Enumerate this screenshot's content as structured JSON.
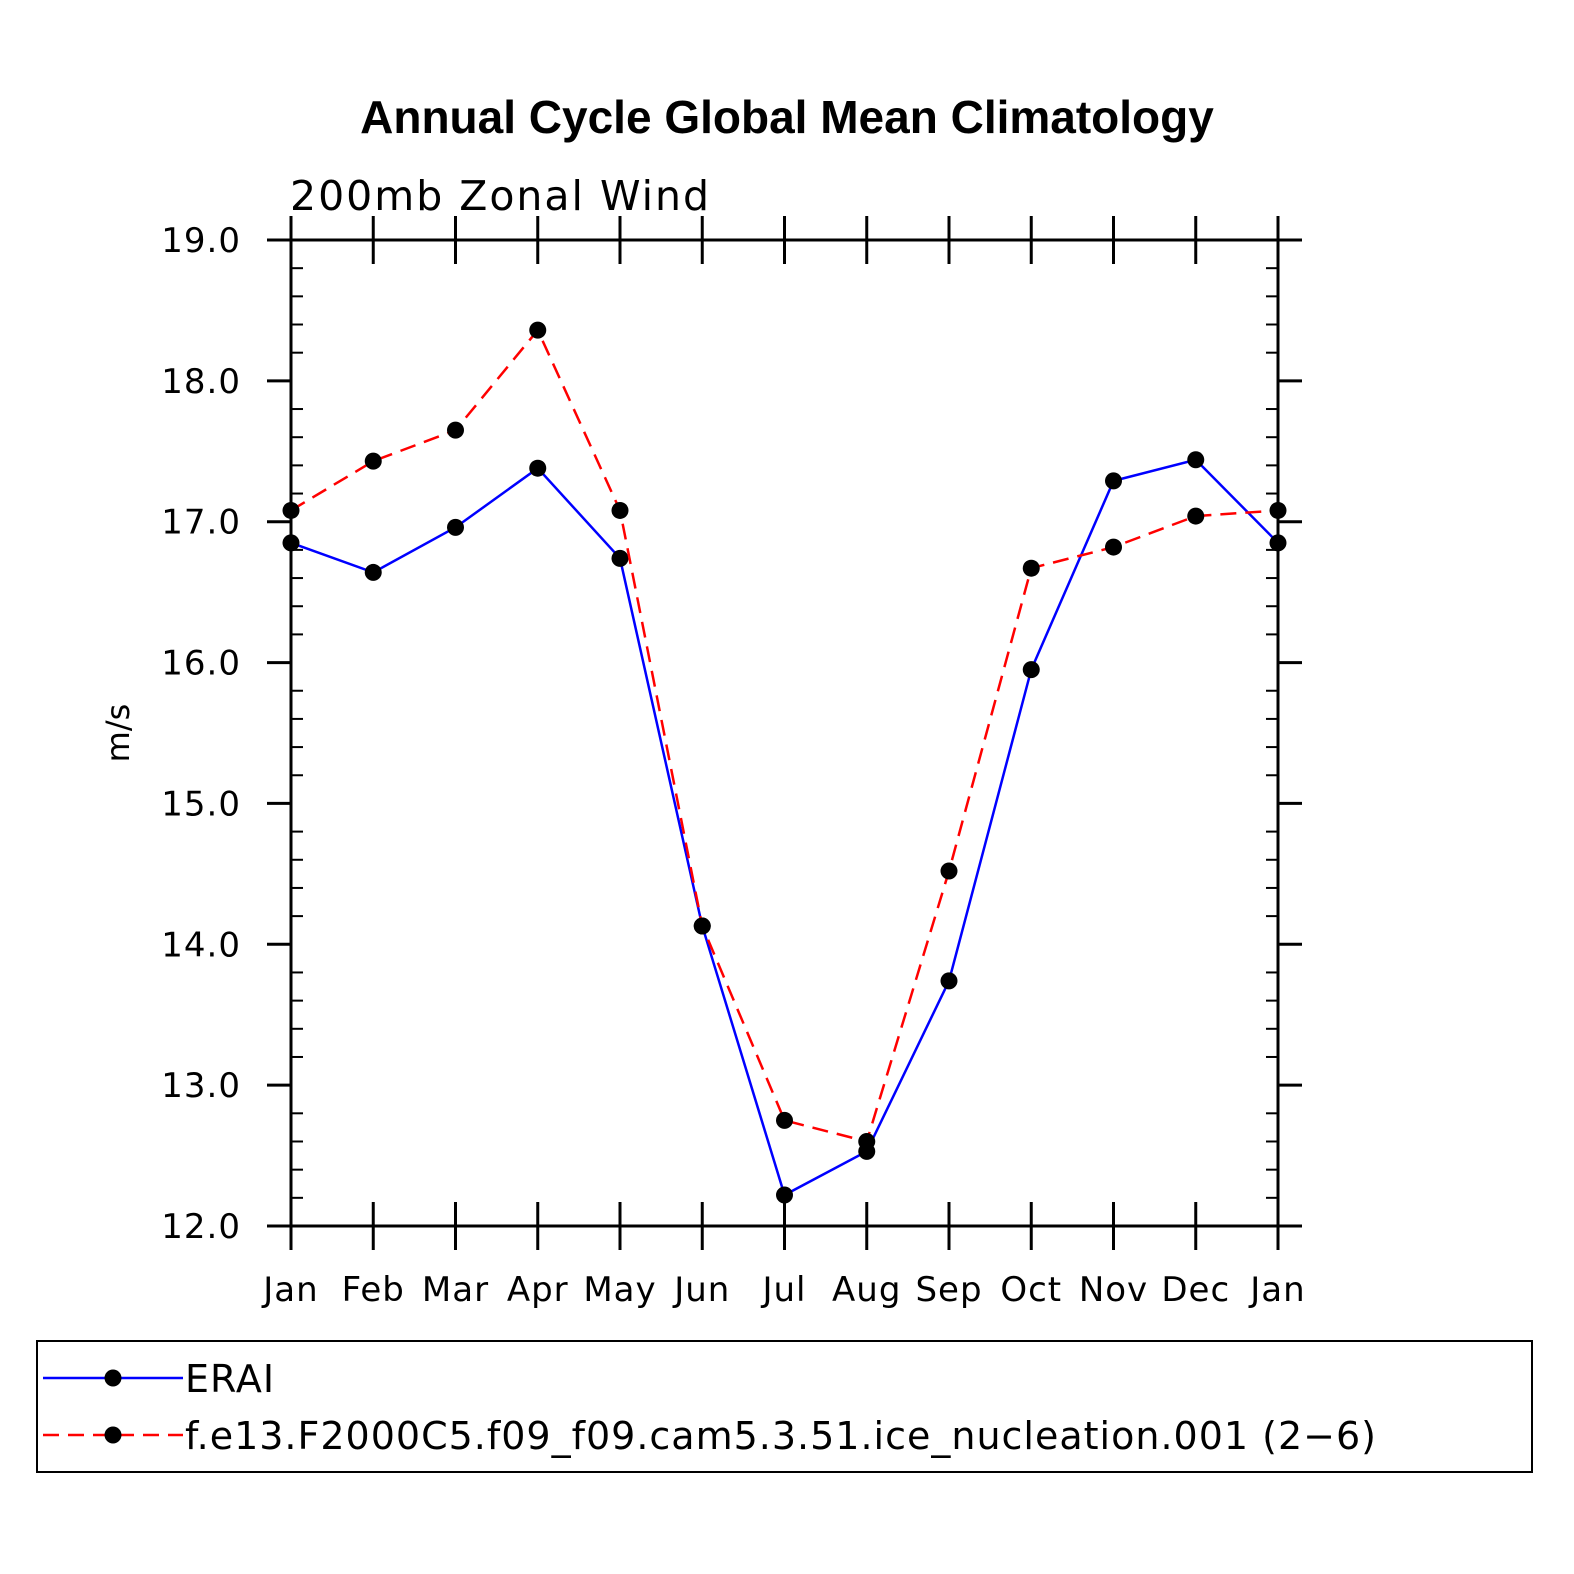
{
  "chart_data": {
    "type": "line",
    "title": "Annual Cycle Global Mean Climatology",
    "subtitle": "200mb Zonal Wind",
    "ylabel": "m/s",
    "xlabel": "",
    "ylim": [
      12.0,
      19.0
    ],
    "y_ticks": [
      "12.0",
      "13.0",
      "14.0",
      "15.0",
      "16.0",
      "17.0",
      "18.0",
      "19.0"
    ],
    "categories": [
      "Jan",
      "Feb",
      "Mar",
      "Apr",
      "May",
      "Jun",
      "Jul",
      "Aug",
      "Sep",
      "Oct",
      "Nov",
      "Dec",
      "Jan"
    ],
    "series": [
      {
        "name": "ERAI",
        "color": "#0000ff",
        "dash": "solid",
        "values": [
          16.85,
          16.64,
          16.96,
          17.38,
          16.74,
          14.13,
          12.22,
          12.53,
          13.74,
          15.95,
          17.29,
          17.44,
          16.85
        ]
      },
      {
        "name": "f.e13.F2000C5.f09_f09.cam5.3.51.ice_nucleation.001 (2−6)",
        "color": "#ff0000",
        "dash": "dashed",
        "values": [
          17.08,
          17.43,
          17.65,
          18.36,
          17.08,
          14.13,
          12.75,
          12.6,
          14.52,
          16.67,
          16.82,
          17.04,
          17.08
        ]
      }
    ],
    "legend_position": "bottom",
    "grid": false
  }
}
